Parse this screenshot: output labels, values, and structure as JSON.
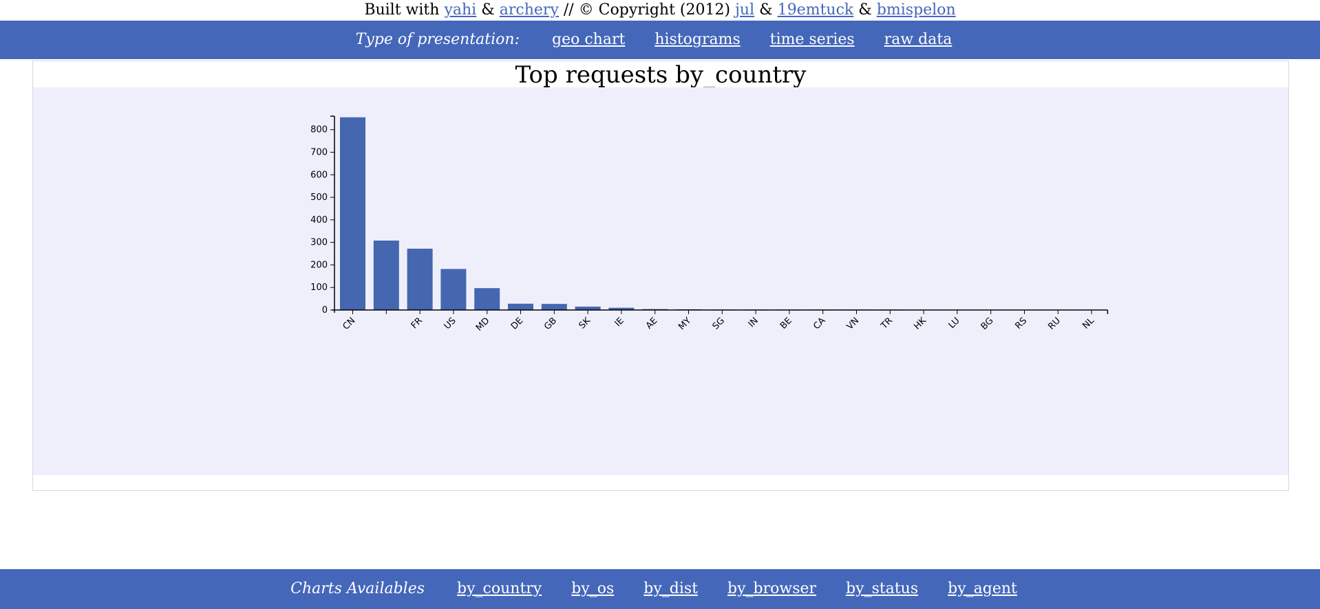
{
  "credits": {
    "built_with": "Built with",
    "yahi": "yahi",
    "amp1": "&",
    "archery": "archery",
    "copyright": "// © Copyright (2012)",
    "jul": "jul",
    "amp2": "&",
    "emtuck": "19emtuck",
    "amp3": "&",
    "bmispelon": "bmispelon"
  },
  "top_nav": {
    "label": "Type of presentation:",
    "links": [
      "geo chart",
      "histograms",
      "time series",
      "raw data"
    ]
  },
  "bottom_nav": {
    "label": "Charts Availables",
    "links": [
      "by_country",
      "by_os",
      "by_dist",
      "by_browser",
      "by_status",
      "by_agent"
    ]
  },
  "colors": {
    "accent": "#4467ba",
    "plot_bg": "#efeffc",
    "bar": "#4467b0"
  },
  "chart_data": {
    "type": "bar",
    "title": "Top requests by_country",
    "categories": [
      "CN",
      "",
      "FR",
      "US",
      "MD",
      "DE",
      "GB",
      "SK",
      "IE",
      "AE",
      "MY",
      "SG",
      "IN",
      "BE",
      "CA",
      "VN",
      "TR",
      "HK",
      "LU",
      "BG",
      "RS",
      "RU",
      "NL"
    ],
    "values": [
      855,
      308,
      272,
      182,
      97,
      28,
      27,
      15,
      10,
      4,
      3,
      2,
      2,
      2,
      2,
      2,
      2,
      1,
      1,
      1,
      1,
      1,
      1
    ],
    "yticks": [
      0,
      100,
      200,
      300,
      400,
      500,
      600,
      700,
      800
    ],
    "ylim": [
      0,
      860
    ],
    "xlabel": "",
    "ylabel": "",
    "grid": false
  }
}
